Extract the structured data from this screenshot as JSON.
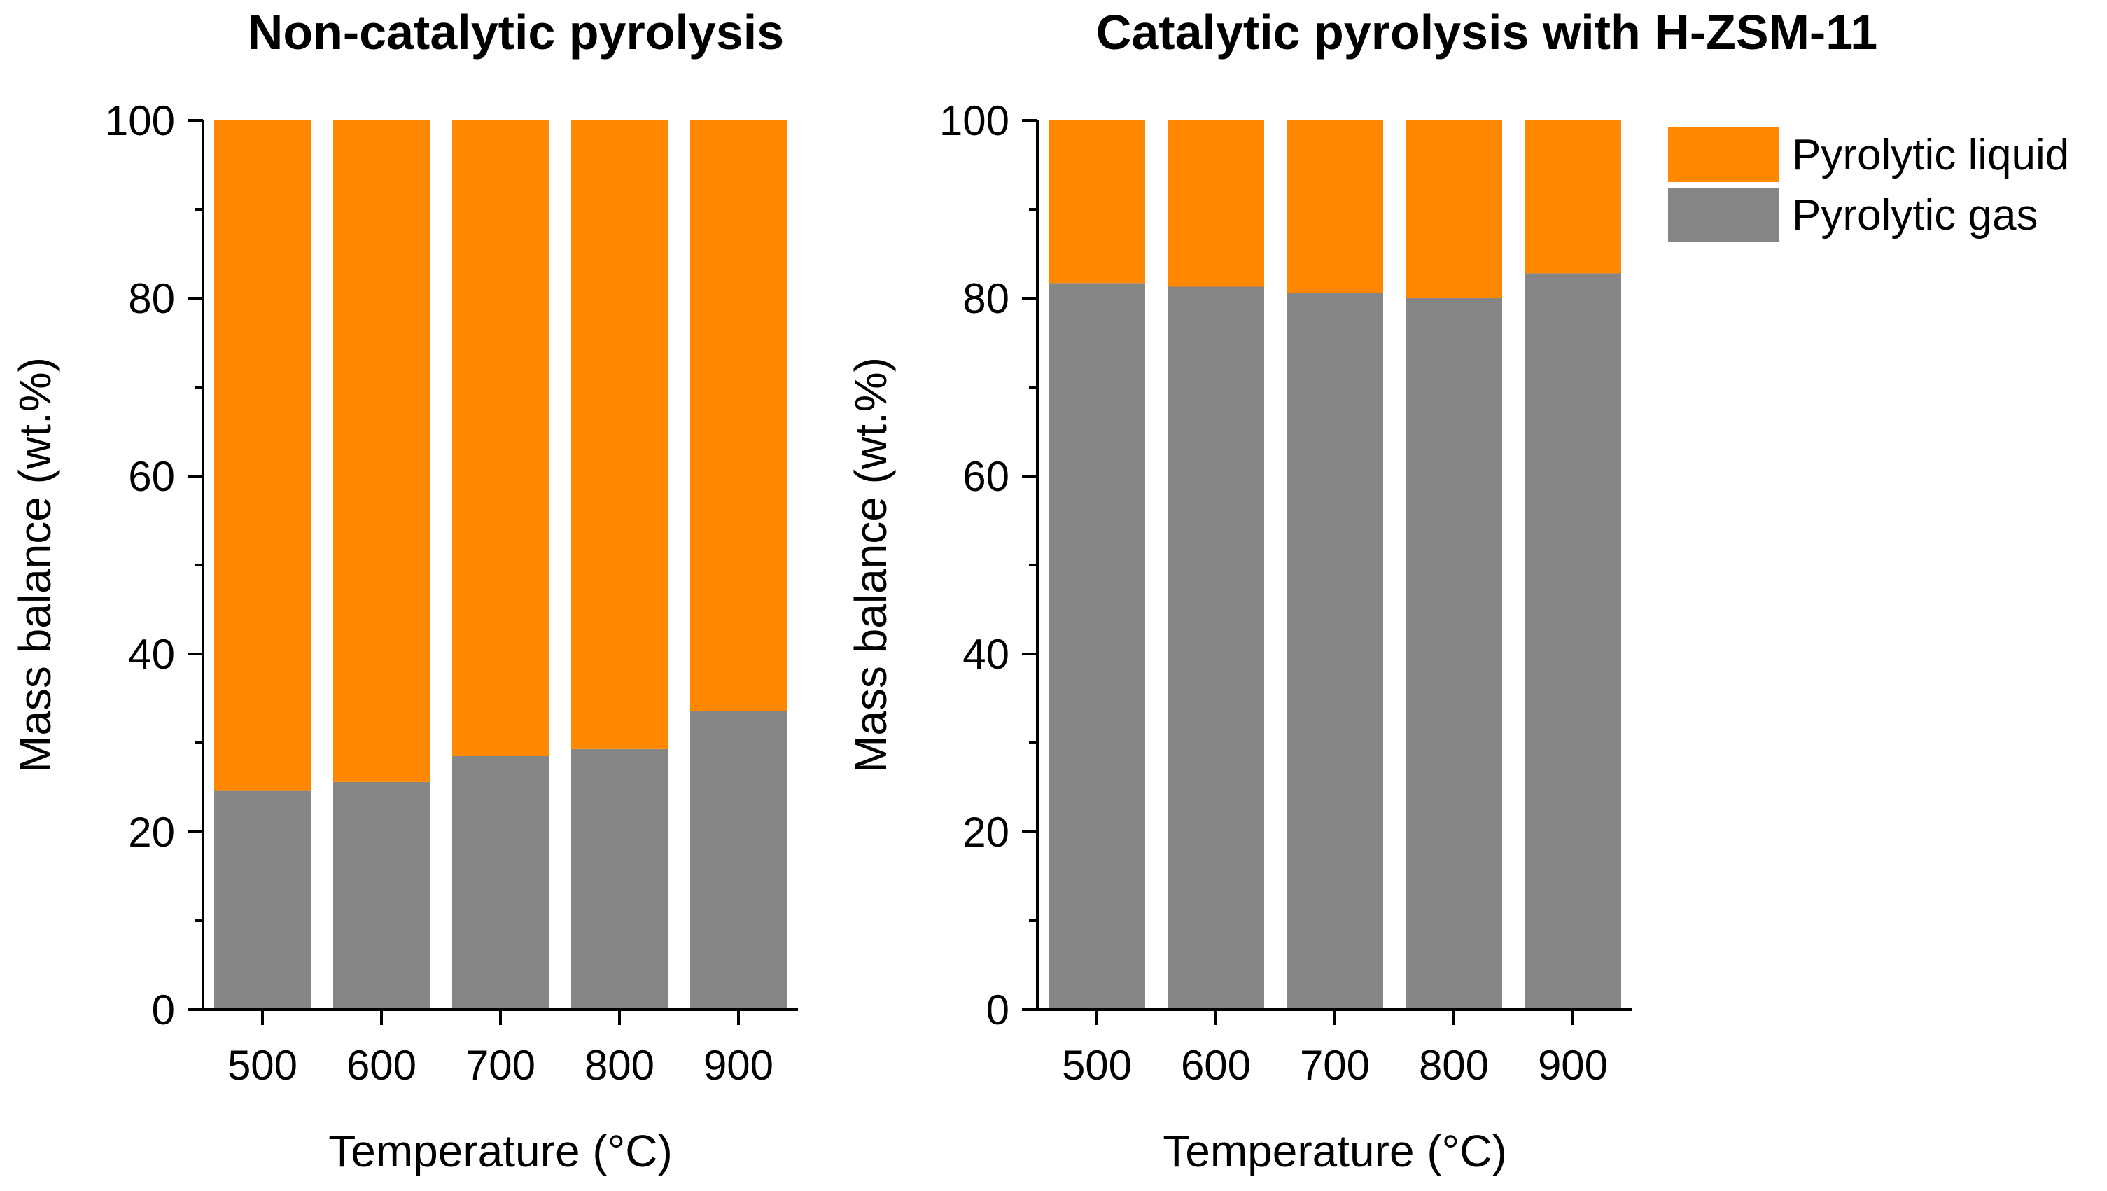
{
  "colors": {
    "liquid": "#ff8800",
    "gas": "#868686"
  },
  "legend": {
    "items": [
      {
        "label": "Pyrolytic liquid",
        "color": "#ff8800"
      },
      {
        "label": "Pyrolytic gas",
        "color": "#868686"
      }
    ]
  },
  "chart_data": [
    {
      "type": "bar",
      "stacked": true,
      "title": "Non-catalytic pyrolysis",
      "xlabel": "Temperature (°C)",
      "ylabel": "Mass balance (wt.%)",
      "ylim": [
        0,
        100
      ],
      "yticks": [
        0,
        20,
        40,
        60,
        80,
        100
      ],
      "categories": [
        "500",
        "600",
        "700",
        "800",
        "900"
      ],
      "series": [
        {
          "name": "Pyrolytic gas",
          "values": [
            24.6,
            25.6,
            28.5,
            29.3,
            33.6
          ]
        },
        {
          "name": "Pyrolytic liquid",
          "values": [
            75.4,
            74.4,
            71.5,
            70.7,
            66.4
          ]
        }
      ]
    },
    {
      "type": "bar",
      "stacked": true,
      "title": "Catalytic pyrolysis with H-ZSM-11",
      "xlabel": "Temperature (°C)",
      "ylabel": "Mass balance (wt.%)",
      "ylim": [
        0,
        100
      ],
      "yticks": [
        0,
        20,
        40,
        60,
        80,
        100
      ],
      "categories": [
        "500",
        "600",
        "700",
        "800",
        "900"
      ],
      "series": [
        {
          "name": "Pyrolytic gas",
          "values": [
            81.7,
            81.3,
            80.6,
            80.0,
            82.8
          ]
        },
        {
          "name": "Pyrolytic liquid",
          "values": [
            18.3,
            18.7,
            19.4,
            20.0,
            17.2
          ]
        }
      ]
    }
  ]
}
